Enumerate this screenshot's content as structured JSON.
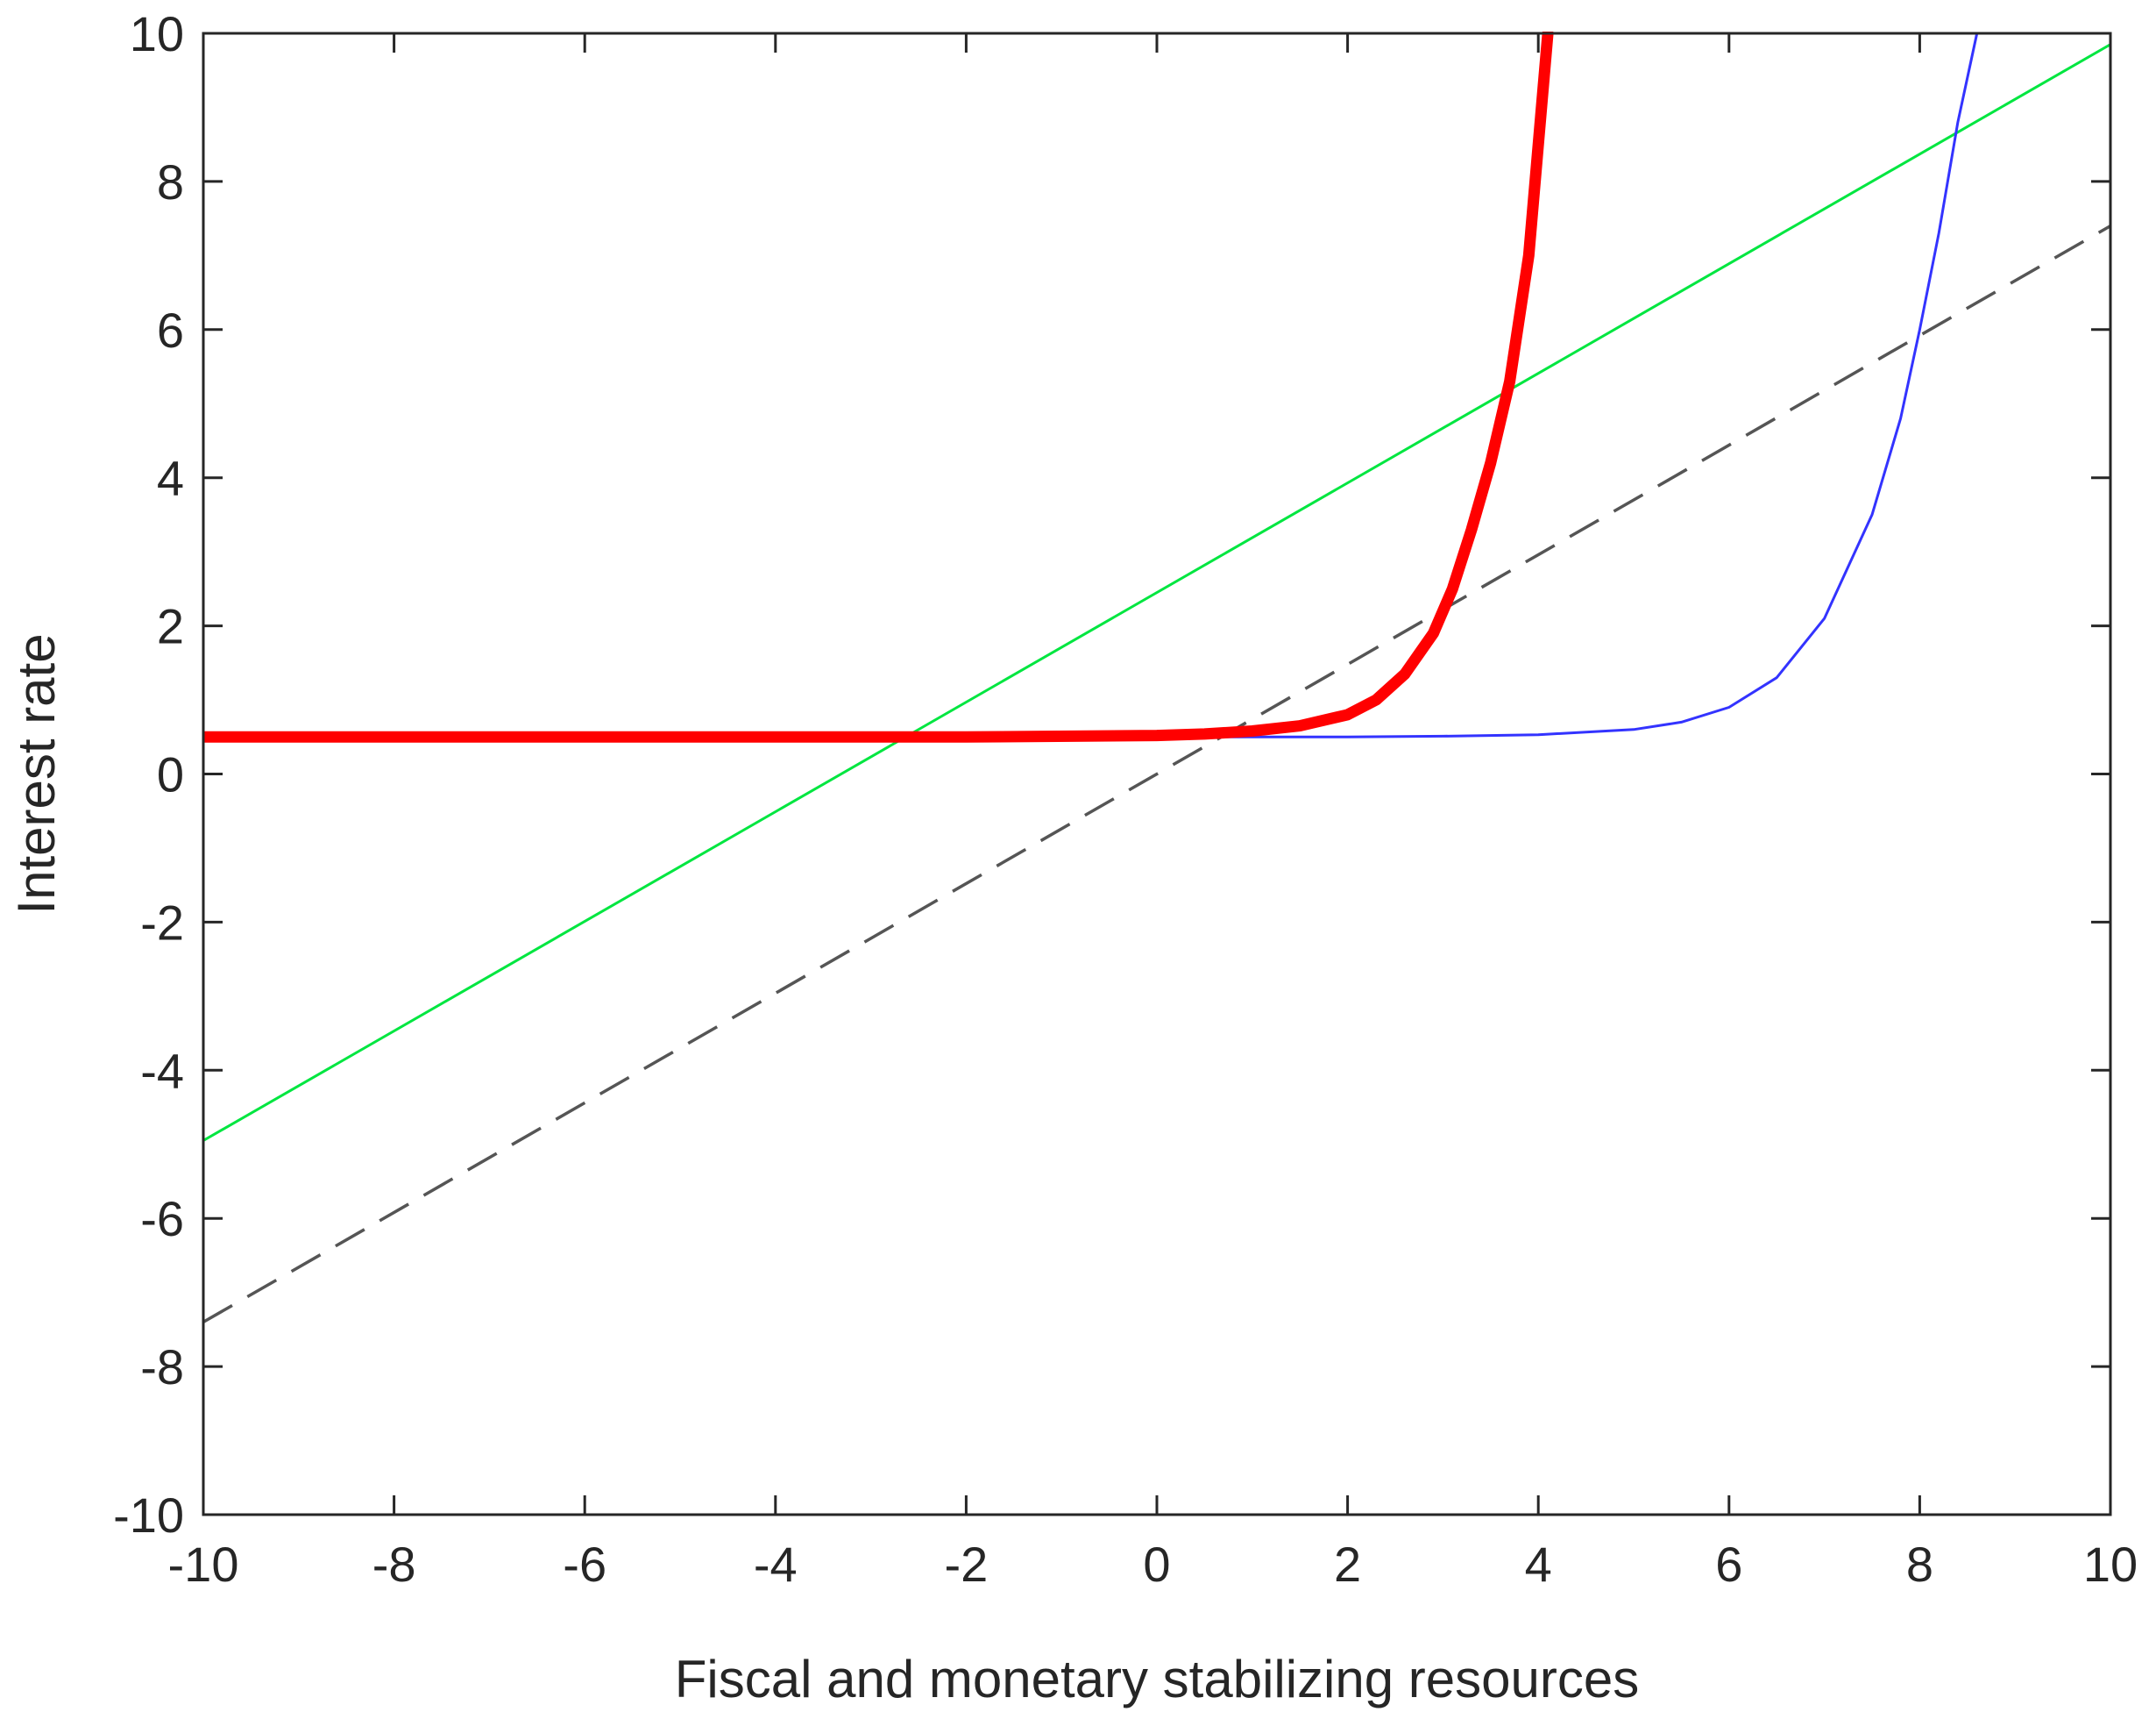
{
  "chart_data": {
    "type": "line",
    "title": "",
    "xlabel": "Fiscal and monetary stabilizing resources",
    "ylabel": "Interest rate",
    "xlim": [
      -10,
      10
    ],
    "ylim": [
      -10,
      10
    ],
    "xticks": [
      -10,
      -8,
      -6,
      -4,
      -2,
      0,
      2,
      4,
      6,
      8,
      10
    ],
    "yticks": [
      -10,
      -8,
      -6,
      -4,
      -2,
      0,
      2,
      4,
      6,
      8,
      10
    ],
    "grid": false,
    "legend": "none",
    "series": [
      {
        "style": "dashed",
        "color": "#555555",
        "x": [
          -10,
          10
        ],
        "y": [
          -7.4,
          7.4
        ]
      },
      {
        "style": "solid",
        "color": "#00e640",
        "x": [
          -10,
          10
        ],
        "y": [
          -4.95,
          9.85
        ]
      },
      {
        "style": "solid",
        "color": "#3333ff",
        "x": [
          -10,
          0,
          2,
          3,
          4,
          5,
          5.5,
          6,
          6.5,
          7,
          7.5,
          7.8,
          8,
          8.2,
          8.4,
          8.6
        ],
        "y": [
          0.5,
          0.5,
          0.5,
          0.51,
          0.53,
          0.6,
          0.7,
          0.9,
          1.3,
          2.1,
          3.5,
          4.8,
          6.0,
          7.3,
          8.8,
          10
        ]
      },
      {
        "style": "thick",
        "color": "#ff0000",
        "x": [
          -10,
          -2,
          0,
          0.5,
          1,
          1.5,
          2,
          2.3,
          2.6,
          2.9,
          3.1,
          3.3,
          3.5,
          3.7,
          3.9,
          4.1
        ],
        "y": [
          0.5,
          0.5,
          0.52,
          0.54,
          0.58,
          0.65,
          0.8,
          1.0,
          1.35,
          1.9,
          2.5,
          3.3,
          4.2,
          5.3,
          7.0,
          10
        ]
      }
    ]
  }
}
